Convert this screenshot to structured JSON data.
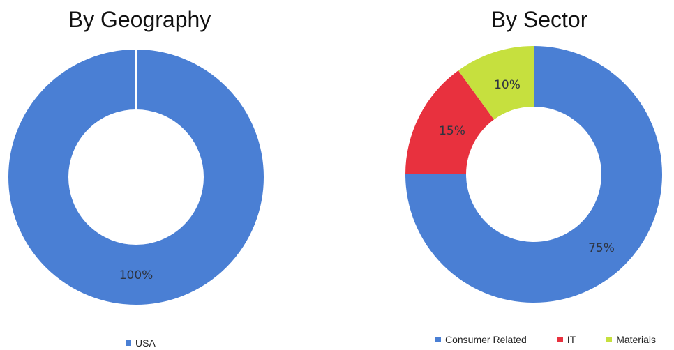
{
  "chart_data": [
    {
      "type": "pie",
      "title": "By Geography",
      "categories": [
        "USA"
      ],
      "values": [
        100
      ],
      "data_labels": [
        "100%"
      ],
      "colors": [
        "#4a7fd4"
      ],
      "legend_placement": "bottom",
      "donut": true
    },
    {
      "type": "pie",
      "title": "By Sector",
      "categories": [
        "Consumer Related",
        "IT",
        "Materials"
      ],
      "values": [
        75,
        15,
        10
      ],
      "data_labels": [
        "75%",
        "15%",
        "10%"
      ],
      "colors": [
        "#4a7fd4",
        "#e8313e",
        "#c6e03e"
      ],
      "legend_placement": "bottom",
      "donut": true
    }
  ]
}
